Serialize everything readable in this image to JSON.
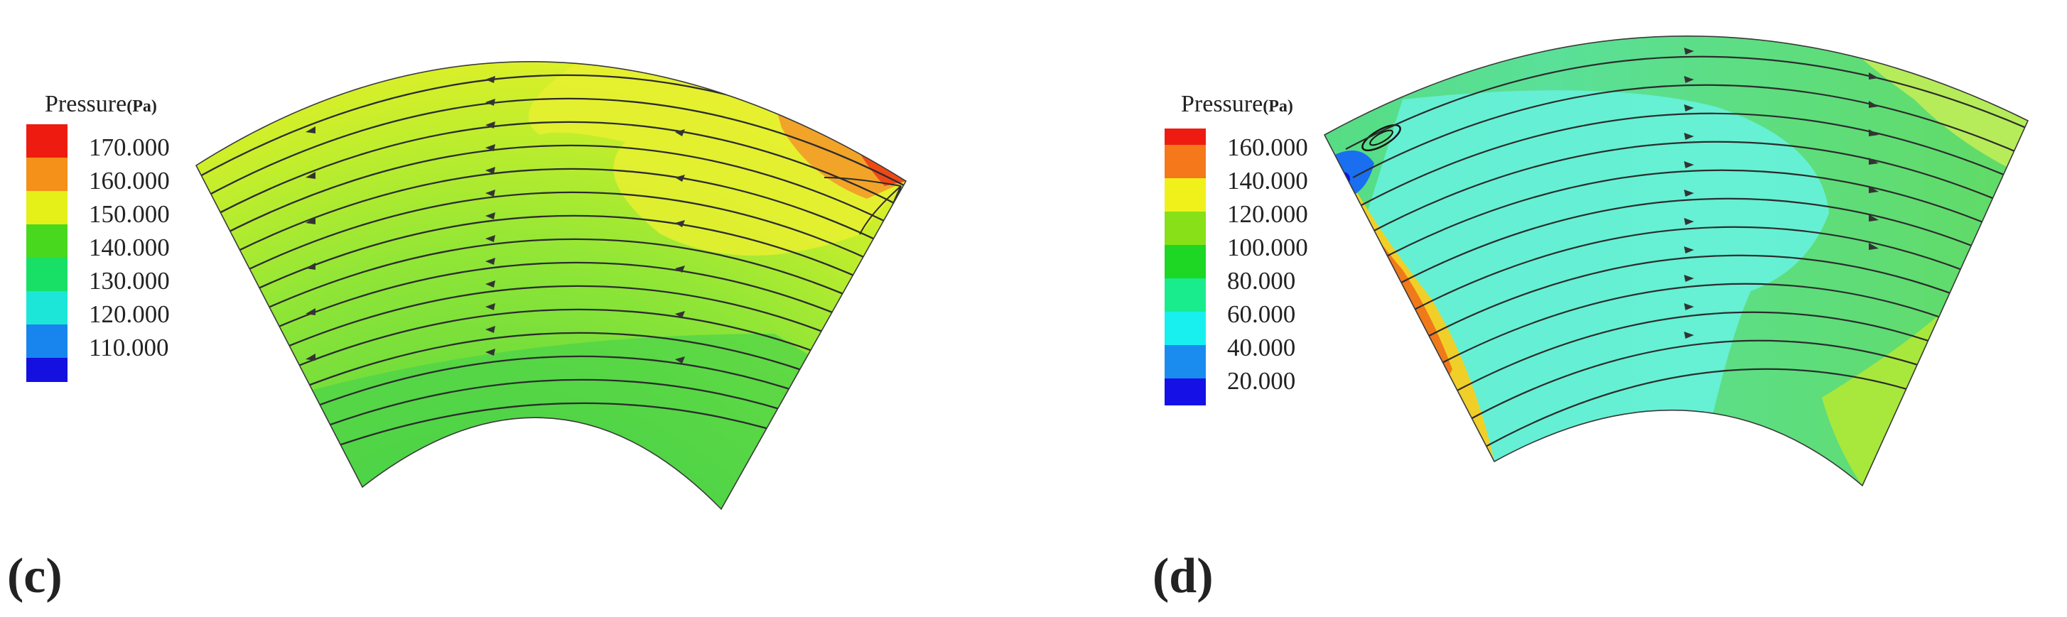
{
  "panels": [
    {
      "id": "c",
      "label": "(c)",
      "legend": {
        "title": "Pressure",
        "unit": "(Pa)",
        "levels": [
          "170.000",
          "160.000",
          "150.000",
          "140.000",
          "130.000",
          "120.000",
          "110.000"
        ],
        "colors": [
          "#ee1c10",
          "#f59018",
          "#e4f018",
          "#48d81e",
          "#18e066",
          "#1ce6d8",
          "#1884ee",
          "#1410e0"
        ]
      }
    },
    {
      "id": "d",
      "label": "(d)",
      "legend": {
        "title": "Pressure",
        "unit": "(Pa)",
        "levels": [
          "160.000",
          "140.000",
          "120.000",
          "100.000",
          "80.000",
          "60.000",
          "40.000",
          "20.000"
        ],
        "colors": [
          "#ee1c10",
          "#f5781a",
          "#f0f01a",
          "#88e018",
          "#1ed624",
          "#18ec8c",
          "#18f0f0",
          "#1a8cf0",
          "#1410e6"
        ]
      }
    }
  ]
}
